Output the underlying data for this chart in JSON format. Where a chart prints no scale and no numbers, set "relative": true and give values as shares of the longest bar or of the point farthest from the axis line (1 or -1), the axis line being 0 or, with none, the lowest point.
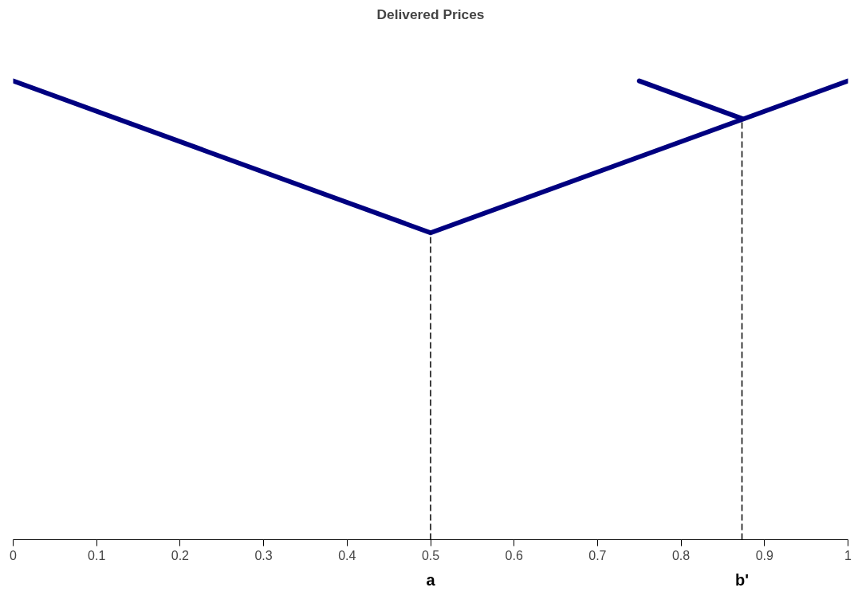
{
  "chart_data": {
    "type": "line",
    "title": "Delivered Prices",
    "relative": true,
    "series": [
      {
        "color": "#000080",
        "x": [
          0,
          0.5,
          1
        ],
        "values": [
          1,
          0.669,
          1
        ]
      },
      {
        "color": "#000080",
        "x": [
          0.75,
          0.873
        ],
        "values": [
          1,
          0.918
        ]
      }
    ],
    "xlim": [
      0,
      1
    ],
    "xticks": [
      0,
      0.1,
      0.2,
      0.3,
      0.4,
      0.5,
      0.6,
      0.7,
      0.8,
      0.9,
      1
    ],
    "ref_lines": [
      {
        "axis": "x",
        "value": 0.5,
        "label": "a",
        "color": "#000000",
        "line_style": "dashed"
      },
      {
        "axis": "x",
        "value": 0.873,
        "label": "b'",
        "color": "#000000",
        "line_style": "dashed"
      }
    ],
    "grid": false,
    "marker": "none",
    "line_style": "solid",
    "tick_labels": "x"
  }
}
